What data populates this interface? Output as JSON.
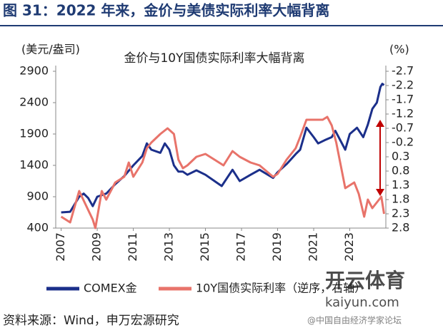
{
  "header": {
    "title": "图 31：2022 年来，金价与美债实际利率大幅背离"
  },
  "chart_data": {
    "type": "line",
    "title": "金价与10Y国债实际利率大幅背离",
    "y_label": "(美元/盎司)",
    "y2_label": "(%)",
    "xlim": [
      2006.7,
      2025
    ],
    "xticks": [
      2007,
      2009,
      2011,
      2013,
      2015,
      2017,
      2019,
      2021,
      2023
    ],
    "ylim": [
      400,
      2900
    ],
    "yticks": [
      400,
      900,
      1400,
      1900,
      2400,
      2900
    ],
    "y2lim": [
      -2.7,
      2.8
    ],
    "y2_reversed": true,
    "y2ticks": [
      -2.7,
      -2.2,
      -1.7,
      -1.2,
      -0.7,
      -0.2,
      0.3,
      0.8,
      1.3,
      1.8,
      2.3,
      2.8
    ],
    "grid": false,
    "legend": "bottom",
    "series": [
      {
        "name": "COMEX金",
        "color": "#1b2f8a",
        "x": [
          2007.0,
          2007.5,
          2008.0,
          2008.25,
          2008.5,
          2008.75,
          2009.0,
          2009.5,
          2010.0,
          2010.5,
          2011.0,
          2011.5,
          2011.75,
          2012.0,
          2012.5,
          2012.75,
          2013.0,
          2013.25,
          2013.5,
          2013.75,
          2014.0,
          2014.5,
          2015.0,
          2015.5,
          2015.9,
          2016.5,
          2016.9,
          2017.5,
          2018.0,
          2018.75,
          2019.0,
          2019.5,
          2019.75,
          2020.0,
          2020.25,
          2020.6,
          2021.0,
          2021.25,
          2021.6,
          2022.0,
          2022.2,
          2022.75,
          2023.0,
          2023.4,
          2023.75,
          2024.0,
          2024.25,
          2024.5,
          2024.7,
          2024.8,
          2024.9
        ],
        "values": [
          650,
          660,
          900,
          950,
          880,
          750,
          900,
          950,
          1100,
          1230,
          1400,
          1550,
          1750,
          1650,
          1600,
          1750,
          1650,
          1400,
          1300,
          1300,
          1250,
          1320,
          1250,
          1150,
          1070,
          1330,
          1150,
          1250,
          1330,
          1200,
          1290,
          1420,
          1500,
          1580,
          1650,
          2000,
          1850,
          1750,
          1800,
          1850,
          1950,
          1650,
          1900,
          2000,
          1850,
          2050,
          2300,
          2400,
          2650,
          2700,
          2680
        ]
      },
      {
        "name": "10Y国债实际利率（逆序，右轴）",
        "color": "#e8736a",
        "axis": "y2",
        "x": [
          2007.0,
          2007.5,
          2008.0,
          2008.75,
          2008.9,
          2009.25,
          2009.5,
          2010.0,
          2010.5,
          2010.75,
          2011.0,
          2011.5,
          2011.75,
          2012.0,
          2012.5,
          2012.9,
          2013.25,
          2013.5,
          2013.75,
          2014.0,
          2014.5,
          2015.0,
          2015.5,
          2016.0,
          2016.5,
          2016.9,
          2017.5,
          2018.0,
          2018.75,
          2019.0,
          2019.5,
          2019.75,
          2020.0,
          2020.25,
          2020.6,
          2021.0,
          2021.5,
          2021.75,
          2022.0,
          2022.25,
          2022.5,
          2022.75,
          2023.0,
          2023.25,
          2023.5,
          2023.8,
          2024.0,
          2024.25,
          2024.5,
          2024.75,
          2024.9
        ],
        "values": [
          2.4,
          2.6,
          1.5,
          2.5,
          2.8,
          1.5,
          1.8,
          1.2,
          1.0,
          0.5,
          1.0,
          0.5,
          0.0,
          -0.2,
          -0.5,
          -0.7,
          -0.5,
          0.4,
          0.7,
          0.6,
          0.3,
          0.2,
          0.4,
          0.6,
          0.1,
          0.3,
          0.5,
          0.6,
          1.0,
          0.9,
          0.4,
          0.2,
          0.0,
          -0.4,
          -1.0,
          -1.0,
          -1.0,
          -1.1,
          -0.8,
          -0.2,
          0.6,
          1.4,
          1.3,
          1.2,
          1.6,
          2.4,
          1.8,
          2.1,
          1.9,
          1.7,
          2.3
        ]
      }
    ]
  },
  "footer": {
    "source": "资料来源：Wind，申万宏源研究"
  },
  "watermark": {
    "brand": "开云体育",
    "site": "kaiyun.com",
    "credit": "@中国自由经济学家论坛"
  }
}
